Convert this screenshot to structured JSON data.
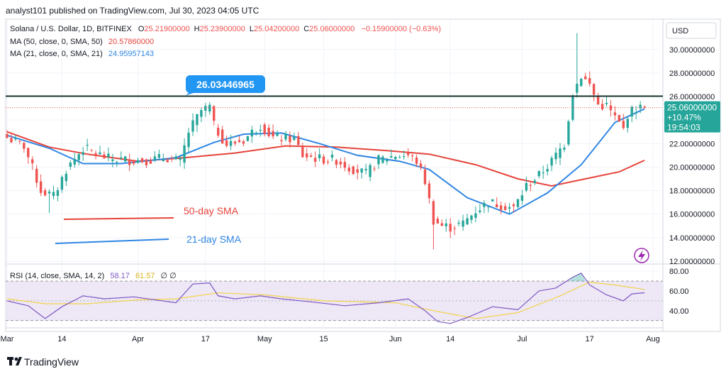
{
  "publisher_line": "analyst101 published on TradingView.com, Jul 30, 2023 04:05 UTC",
  "currency_button": "USD",
  "header": {
    "symbol": "Solana / U.S. Dollar, 1D, BITFINEX",
    "ohlc": [
      {
        "k": "O",
        "v": "25.21900000"
      },
      {
        "k": "H",
        "v": "25.23900000"
      },
      {
        "k": "L",
        "v": "25.04200000"
      },
      {
        "k": "C",
        "v": "25.06000000"
      }
    ],
    "change": "−0.15900000 (−0.63%)",
    "ma50_label": "MA (50, close, 0, SMA, 50)",
    "ma50_value": "20.57860000",
    "ma21_label": "MA (21, close, 0, SMA, 21)",
    "ma21_value": "24.95957143"
  },
  "price_tag": {
    "price": "25.06000000",
    "pct": "+10.47%",
    "countdown": "19:54:03"
  },
  "resistance_callout": "26.03446965",
  "legend_notes": {
    "sma50": "50-day SMA",
    "sma21": "21-day SMA"
  },
  "rsi_header": {
    "label": "RSI (14, close, SMA, 14, 2)",
    "rsi": "58.17",
    "sma": "61.57",
    "extra": "∅ ∅"
  },
  "footer_logo_text": "TradingView",
  "colors": {
    "up": "#26a69a",
    "down": "#ef5350",
    "sma50": "#e5443b",
    "sma21": "#2f86e3",
    "resistance": "#17322f",
    "rsi_line": "#7e57c2",
    "rsi_sma": "#f3d34a",
    "rsi_band": "#ede7f6",
    "callout": "#2196f3",
    "price_tag": "#26a69a",
    "grid": "#f0f3fa"
  },
  "chart_data": [
    {
      "type": "candlestick",
      "title": "Solana / U.S. Dollar, 1D, BITFINEX",
      "x_ticks": [
        "Mar",
        "14",
        "Apr",
        "17",
        "May",
        "15",
        "Jun",
        "14",
        "Jul",
        "17",
        "Aug"
      ],
      "y_ticks": [
        "12.00000000",
        "14.00000000",
        "16.00000000",
        "18.00000000",
        "20.00000000",
        "22.00000000",
        "24.00000000",
        "26.00000000",
        "28.00000000",
        "30.00000000"
      ],
      "ylim": [
        12,
        32.4
      ],
      "resistance_level": 26.03446965,
      "current_price": 25.06,
      "close_points": [
        [
          "2023-03-01",
          22.5
        ],
        [
          "2023-03-05",
          21.8
        ],
        [
          "2023-03-09",
          18.0
        ],
        [
          "2023-03-12",
          17.5
        ],
        [
          "2023-03-15",
          19.8
        ],
        [
          "2023-03-19",
          21.6
        ],
        [
          "2023-03-22",
          21.2
        ],
        [
          "2023-03-25",
          20.7
        ],
        [
          "2023-03-30",
          20.6
        ],
        [
          "2023-04-03",
          20.6
        ],
        [
          "2023-04-08",
          20.8
        ],
        [
          "2023-04-11",
          20.4
        ],
        [
          "2023-04-13",
          23.0
        ],
        [
          "2023-04-16",
          24.8
        ],
        [
          "2023-04-18",
          25.1
        ],
        [
          "2023-04-19",
          23.5
        ],
        [
          "2023-04-22",
          21.9
        ],
        [
          "2023-04-26",
          22.3
        ],
        [
          "2023-04-30",
          23.6
        ],
        [
          "2023-05-03",
          22.5
        ],
        [
          "2023-05-08",
          22.4
        ],
        [
          "2023-05-10",
          21.0
        ],
        [
          "2023-05-14",
          20.7
        ],
        [
          "2023-05-18",
          20.6
        ],
        [
          "2023-05-21",
          20.0
        ],
        [
          "2023-05-25",
          19.4
        ],
        [
          "2023-05-28",
          20.6
        ],
        [
          "2023-06-01",
          21.0
        ],
        [
          "2023-06-04",
          21.0
        ],
        [
          "2023-06-06",
          20.5
        ],
        [
          "2023-06-08",
          18.8
        ],
        [
          "2023-06-10",
          15.5
        ],
        [
          "2023-06-12",
          15.0
        ],
        [
          "2023-06-14",
          14.9
        ],
        [
          "2023-06-17",
          15.2
        ],
        [
          "2023-06-20",
          16.3
        ],
        [
          "2023-06-23",
          17.0
        ],
        [
          "2023-06-26",
          16.8
        ],
        [
          "2023-06-29",
          16.5
        ],
        [
          "2023-07-02",
          18.4
        ],
        [
          "2023-07-05",
          19.3
        ],
        [
          "2023-07-08",
          20.5
        ],
        [
          "2023-07-11",
          22.0
        ],
        [
          "2023-07-13",
          26.4
        ],
        [
          "2023-07-15",
          27.8
        ],
        [
          "2023-07-17",
          27.0
        ],
        [
          "2023-07-19",
          25.3
        ],
        [
          "2023-07-21",
          25.2
        ],
        [
          "2023-07-23",
          24.2
        ],
        [
          "2023-07-25",
          23.2
        ],
        [
          "2023-07-26",
          24.5
        ],
        [
          "2023-07-28",
          25.0
        ],
        [
          "2023-07-30",
          25.06
        ]
      ],
      "intraday_extremes": {
        "high": 31.4,
        "high_date": "2023-07-14",
        "low": 13.0,
        "low_date": "2023-06-10",
        "march_low": 16.1
      },
      "sma50": [
        [
          "2023-03-01",
          23.0
        ],
        [
          "2023-03-11",
          21.7
        ],
        [
          "2023-03-20",
          21.1
        ],
        [
          "2023-04-01",
          20.5
        ],
        [
          "2023-04-12",
          20.8
        ],
        [
          "2023-04-24",
          21.2
        ],
        [
          "2023-05-06",
          21.8
        ],
        [
          "2023-05-18",
          21.7
        ],
        [
          "2023-05-30",
          21.4
        ],
        [
          "2023-06-09",
          21.1
        ],
        [
          "2023-06-20",
          20.2
        ],
        [
          "2023-06-30",
          19.0
        ],
        [
          "2023-07-08",
          18.4
        ],
        [
          "2023-07-16",
          19.0
        ],
        [
          "2023-07-24",
          19.6
        ],
        [
          "2023-07-30",
          20.5786
        ]
      ],
      "sma21": [
        [
          "2023-03-01",
          22.7
        ],
        [
          "2023-03-11",
          21.6
        ],
        [
          "2023-03-19",
          20.3
        ],
        [
          "2023-03-28",
          20.3
        ],
        [
          "2023-04-10",
          20.8
        ],
        [
          "2023-04-19",
          22.1
        ],
        [
          "2023-04-26",
          22.8
        ],
        [
          "2023-05-05",
          22.9
        ],
        [
          "2023-05-14",
          22.0
        ],
        [
          "2023-05-23",
          21.0
        ],
        [
          "2023-06-02",
          20.5
        ],
        [
          "2023-06-09",
          19.8
        ],
        [
          "2023-06-18",
          17.4
        ],
        [
          "2023-06-28",
          16.0
        ],
        [
          "2023-07-07",
          17.8
        ],
        [
          "2023-07-15",
          20.2
        ],
        [
          "2023-07-23",
          23.8
        ],
        [
          "2023-07-30",
          24.9596
        ]
      ]
    },
    {
      "type": "line",
      "title": "RSI (14, close, SMA, 14, 2)",
      "y_ticks": [
        "40.00",
        "60.00",
        "80.00"
      ],
      "bands": [
        30,
        70
      ],
      "ylim": [
        24,
        83
      ],
      "series": [
        {
          "name": "RSI",
          "values": [
            [
              "2023-03-01",
              50.0
            ],
            [
              "2023-03-06",
              45.0
            ],
            [
              "2023-03-10",
              32.0
            ],
            [
              "2023-03-14",
              44.0
            ],
            [
              "2023-03-19",
              55.0
            ],
            [
              "2023-03-24",
              52.0
            ],
            [
              "2023-03-31",
              54.0
            ],
            [
              "2023-04-10",
              48.0
            ],
            [
              "2023-04-14",
              67.0
            ],
            [
              "2023-04-18",
              68.0
            ],
            [
              "2023-04-20",
              55.0
            ],
            [
              "2023-04-24",
              52.0
            ],
            [
              "2023-04-30",
              55.0
            ],
            [
              "2023-05-05",
              52.0
            ],
            [
              "2023-05-12",
              49.0
            ],
            [
              "2023-05-20",
              45.0
            ],
            [
              "2023-05-28",
              48.0
            ],
            [
              "2023-06-04",
              52.0
            ],
            [
              "2023-06-08",
              40.0
            ],
            [
              "2023-06-11",
              29.0
            ],
            [
              "2023-06-14",
              27.0
            ],
            [
              "2023-06-18",
              33.0
            ],
            [
              "2023-06-24",
              44.0
            ],
            [
              "2023-06-30",
              41.0
            ],
            [
              "2023-07-05",
              60.0
            ],
            [
              "2023-07-09",
              63.0
            ],
            [
              "2023-07-13",
              74.0
            ],
            [
              "2023-07-15",
              78.0
            ],
            [
              "2023-07-17",
              66.0
            ],
            [
              "2023-07-21",
              56.0
            ],
            [
              "2023-07-25",
              50.0
            ],
            [
              "2023-07-27",
              57.0
            ],
            [
              "2023-07-30",
              58.17
            ]
          ]
        },
        {
          "name": "SMA",
          "values": [
            [
              "2023-03-01",
              52.0
            ],
            [
              "2023-03-10",
              47.0
            ],
            [
              "2023-03-20",
              47.0
            ],
            [
              "2023-04-01",
              51.0
            ],
            [
              "2023-04-10",
              52.0
            ],
            [
              "2023-04-20",
              58.0
            ],
            [
              "2023-05-01",
              56.0
            ],
            [
              "2023-05-15",
              50.0
            ],
            [
              "2023-06-01",
              48.0
            ],
            [
              "2023-06-10",
              40.0
            ],
            [
              "2023-06-20",
              32.0
            ],
            [
              "2023-06-30",
              38.0
            ],
            [
              "2023-07-10",
              55.0
            ],
            [
              "2023-07-17",
              69.0
            ],
            [
              "2023-07-23",
              66.0
            ],
            [
              "2023-07-30",
              61.57
            ]
          ]
        }
      ]
    }
  ]
}
